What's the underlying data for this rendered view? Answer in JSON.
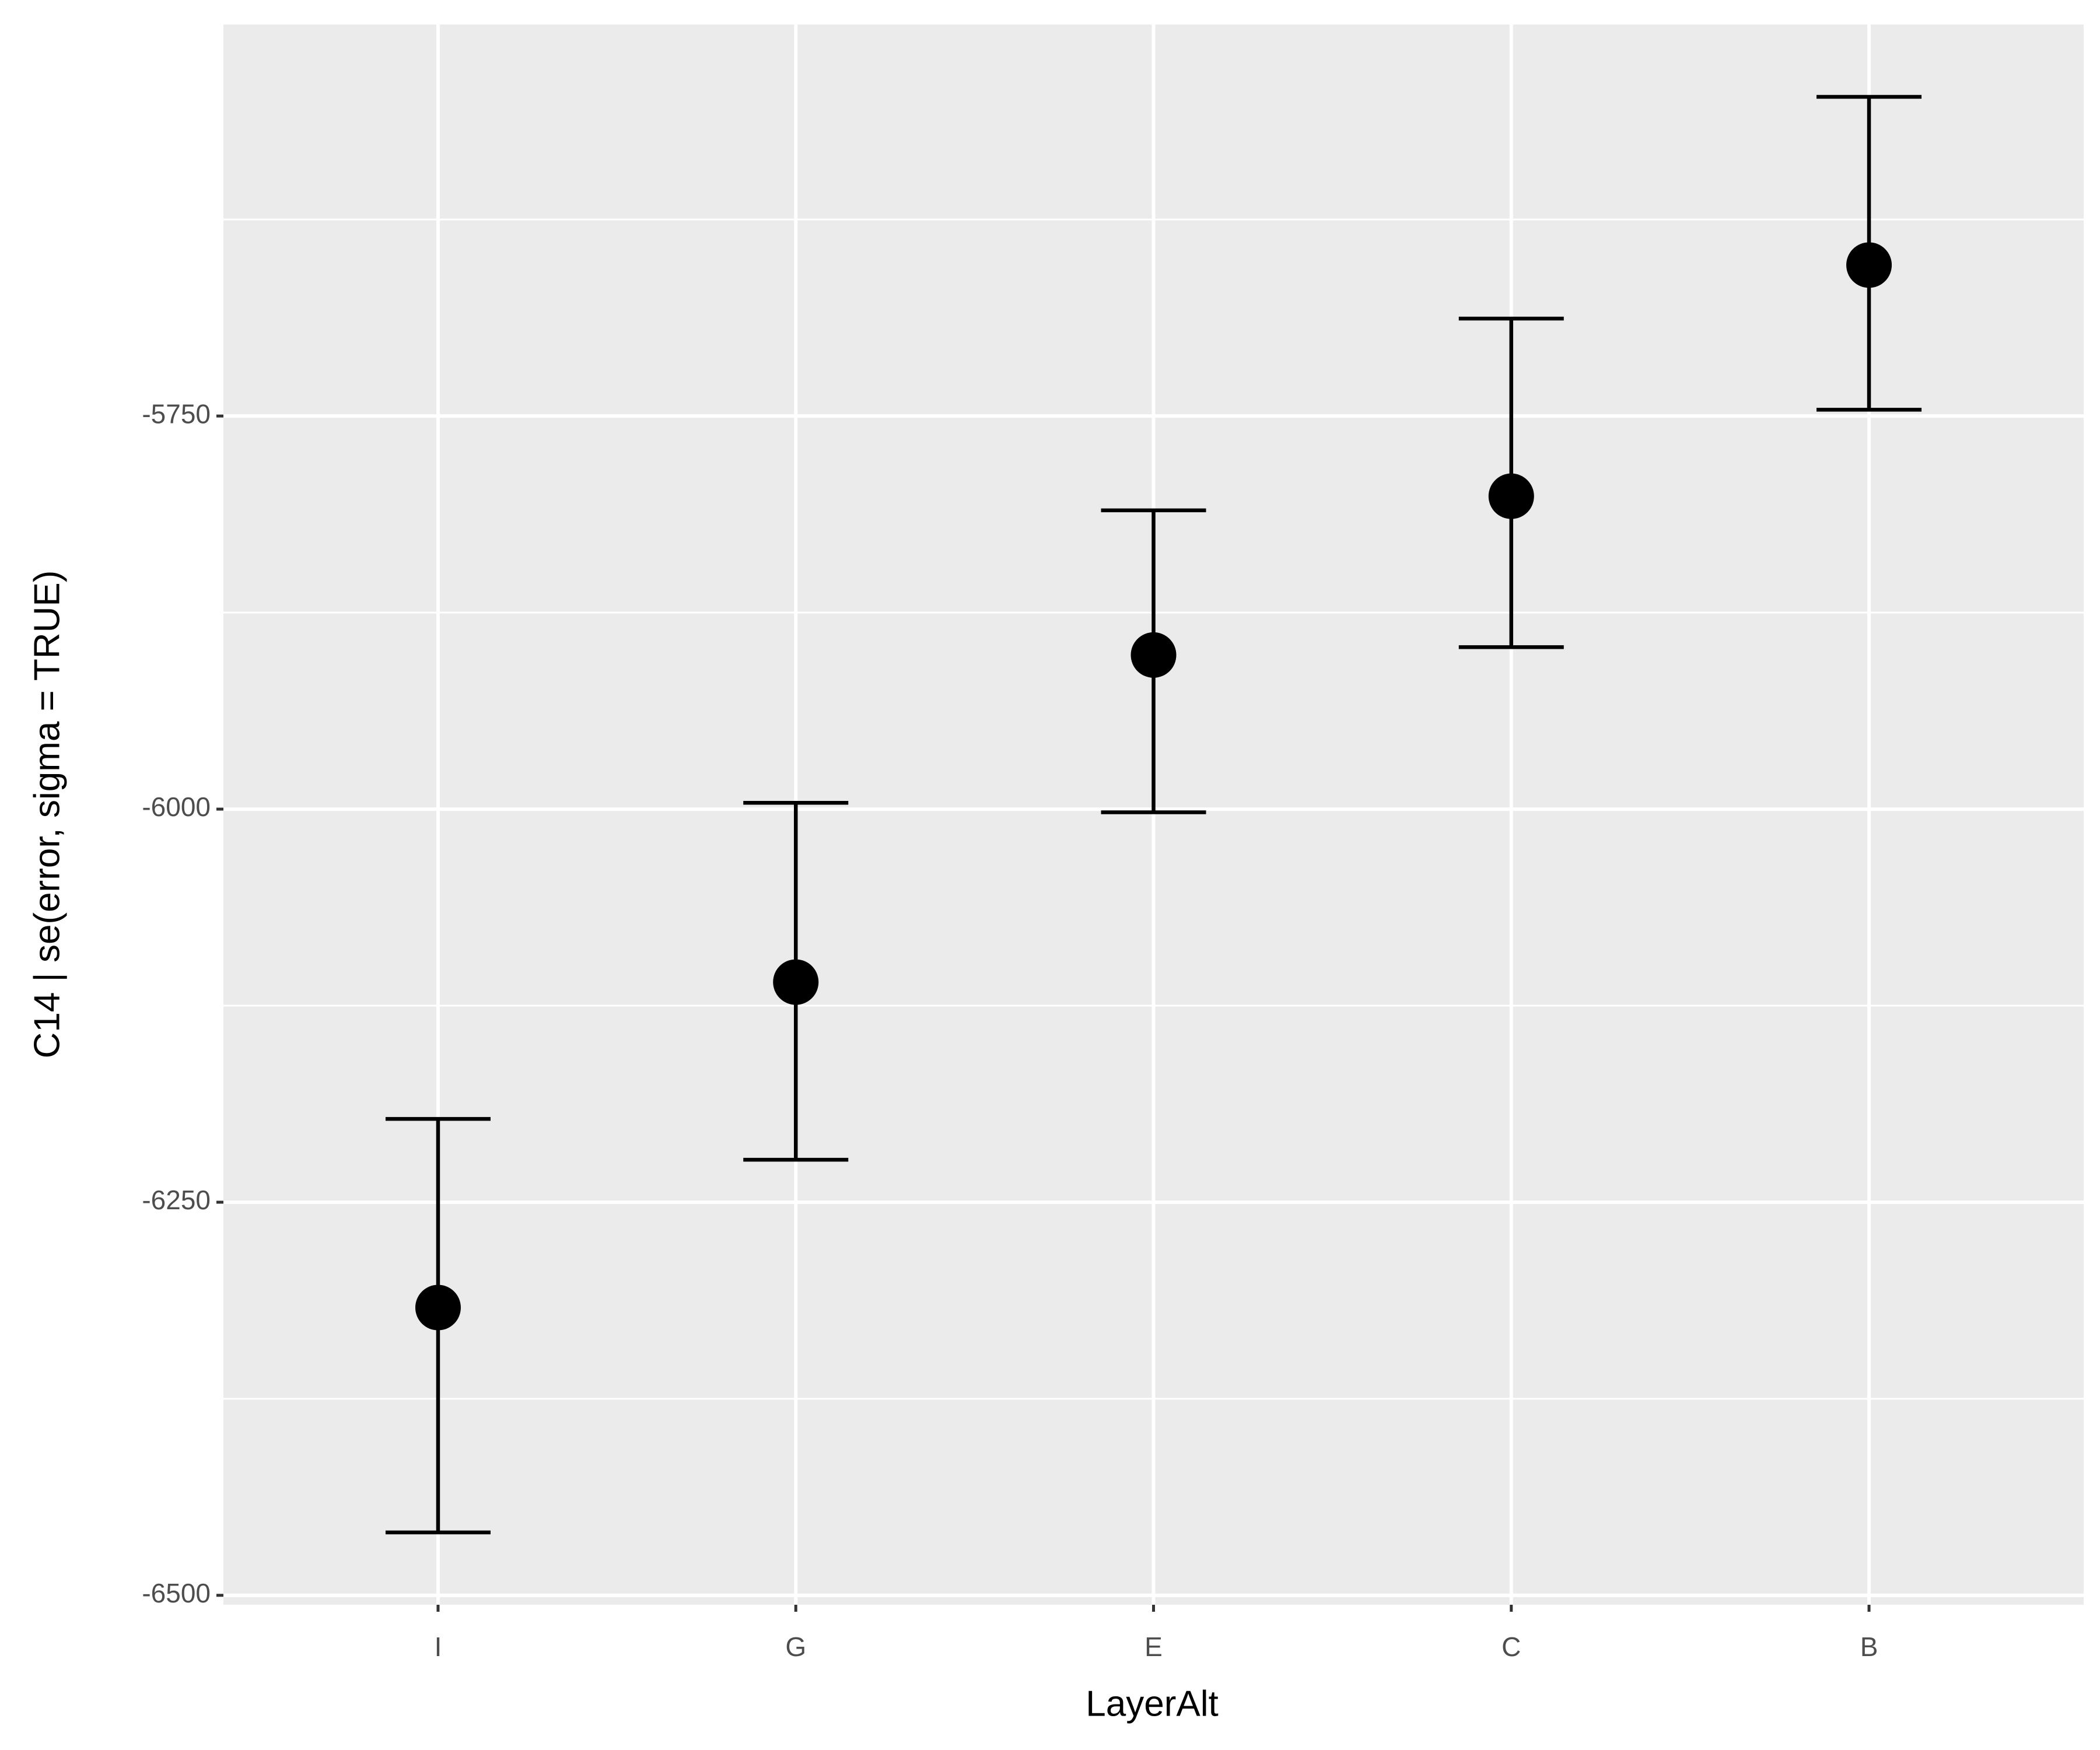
{
  "chart_data": {
    "type": "errorbar",
    "x_label": "LayerAlt",
    "y_label": "C14 | se(error, sigma = TRUE)",
    "categories": [
      "I",
      "G",
      "E",
      "C",
      "B"
    ],
    "values": [
      -6317,
      -6110,
      -5902,
      -5801,
      -5654
    ],
    "ymin": [
      -6460,
      -6223,
      -6002,
      -5897,
      -5746
    ],
    "ymax": [
      -6197,
      -5996,
      -5810,
      -5688,
      -5547
    ],
    "color": "#000000",
    "ylim": [
      -6506,
      -5501
    ],
    "yticks": [
      -6500,
      -6250,
      -6000,
      -5750
    ],
    "grid": true
  }
}
